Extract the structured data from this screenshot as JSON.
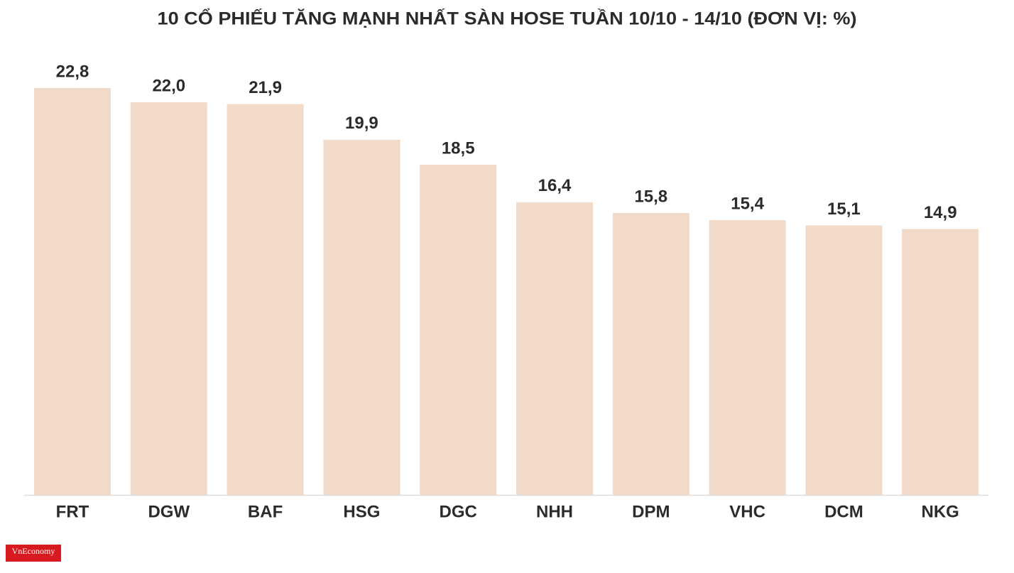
{
  "chart_data": {
    "type": "bar",
    "title": "10 CỔ PHIẾU TĂNG MẠNH NHẤT SÀN HOSE TUẦN 10/10 - 14/10 (ĐƠN VỊ: %)",
    "categories": [
      "FRT",
      "DGW",
      "BAF",
      "HSG",
      "DGC",
      "NHH",
      "DPM",
      "VHC",
      "DCM",
      "NKG"
    ],
    "values": [
      22.8,
      22.0,
      21.9,
      19.9,
      18.5,
      16.4,
      15.8,
      15.4,
      15.1,
      14.9
    ],
    "value_labels": [
      "22,8",
      "22,0",
      "21,9",
      "19,9",
      "18,5",
      "16,4",
      "15,8",
      "15,4",
      "15,1",
      "14,9"
    ],
    "color": "#f2dac8"
  },
  "logo": "VnEconomy"
}
